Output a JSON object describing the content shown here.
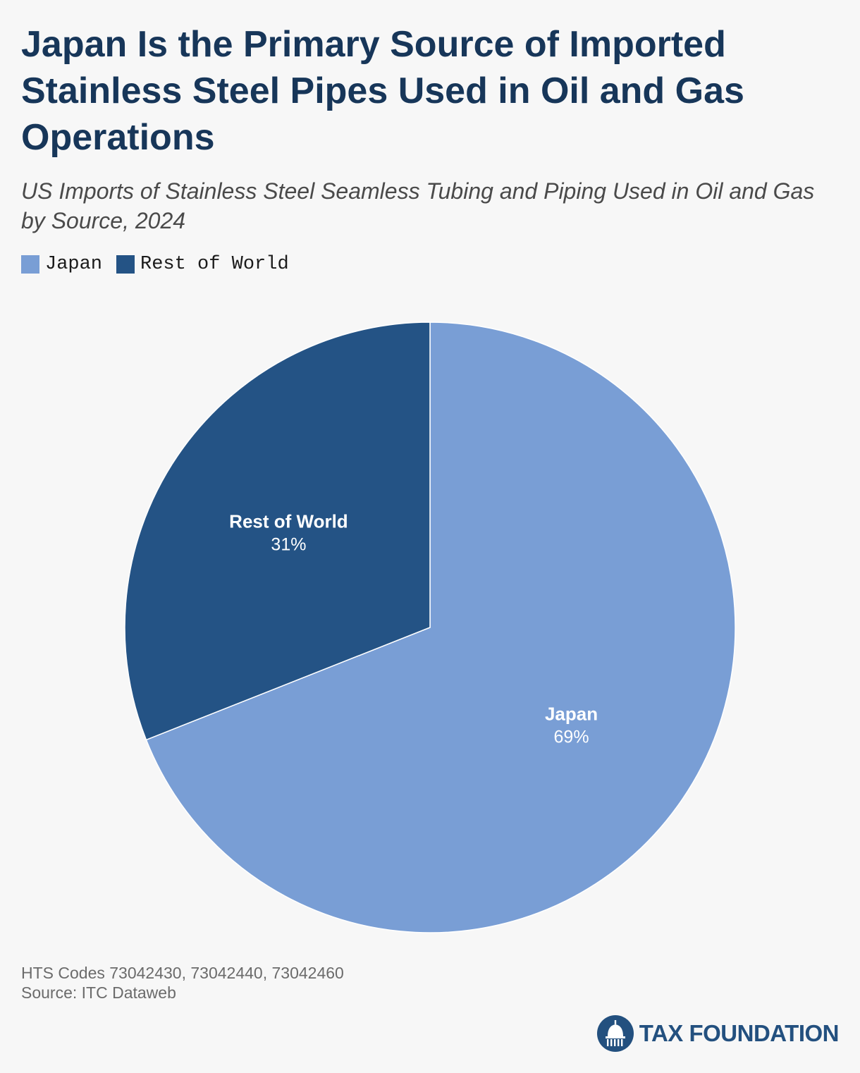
{
  "colors": {
    "title": "#173659",
    "subtitle": "#4a4a4a",
    "japan": "#799ed5",
    "rest_of_world": "#245385",
    "background": "#f7f7f7",
    "brand": "#23507f"
  },
  "title": "Japan Is the Primary Source of Imported Stainless Steel Pipes Used in Oil and Gas Operations",
  "subtitle": "US Imports of Stainless Steel Seamless Tubing and Piping Used in Oil and Gas by Source, 2024",
  "legend": [
    {
      "label": "Japan",
      "color": "#799ed5"
    },
    {
      "label": "Rest of World",
      "color": "#245385"
    }
  ],
  "chart_data": {
    "type": "pie",
    "title": "US Imports of Stainless Steel Seamless Tubing and Piping Used in Oil and Gas by Source, 2024",
    "categories": [
      "Japan",
      "Rest of World"
    ],
    "values": [
      69,
      31
    ],
    "value_labels": [
      "69%",
      "31%"
    ],
    "colors": [
      "#799ed5",
      "#245385"
    ],
    "start_angle": "12 o'clock",
    "direction": "clockwise",
    "legend_position": "top-left"
  },
  "footnotes": {
    "codes": "HTS Codes 73042430, 73042440, 73042460",
    "source": "Source: ITC Dataweb"
  },
  "brand": {
    "name": "TAX FOUNDATION",
    "logo_icon": "capitol-dome-icon"
  }
}
